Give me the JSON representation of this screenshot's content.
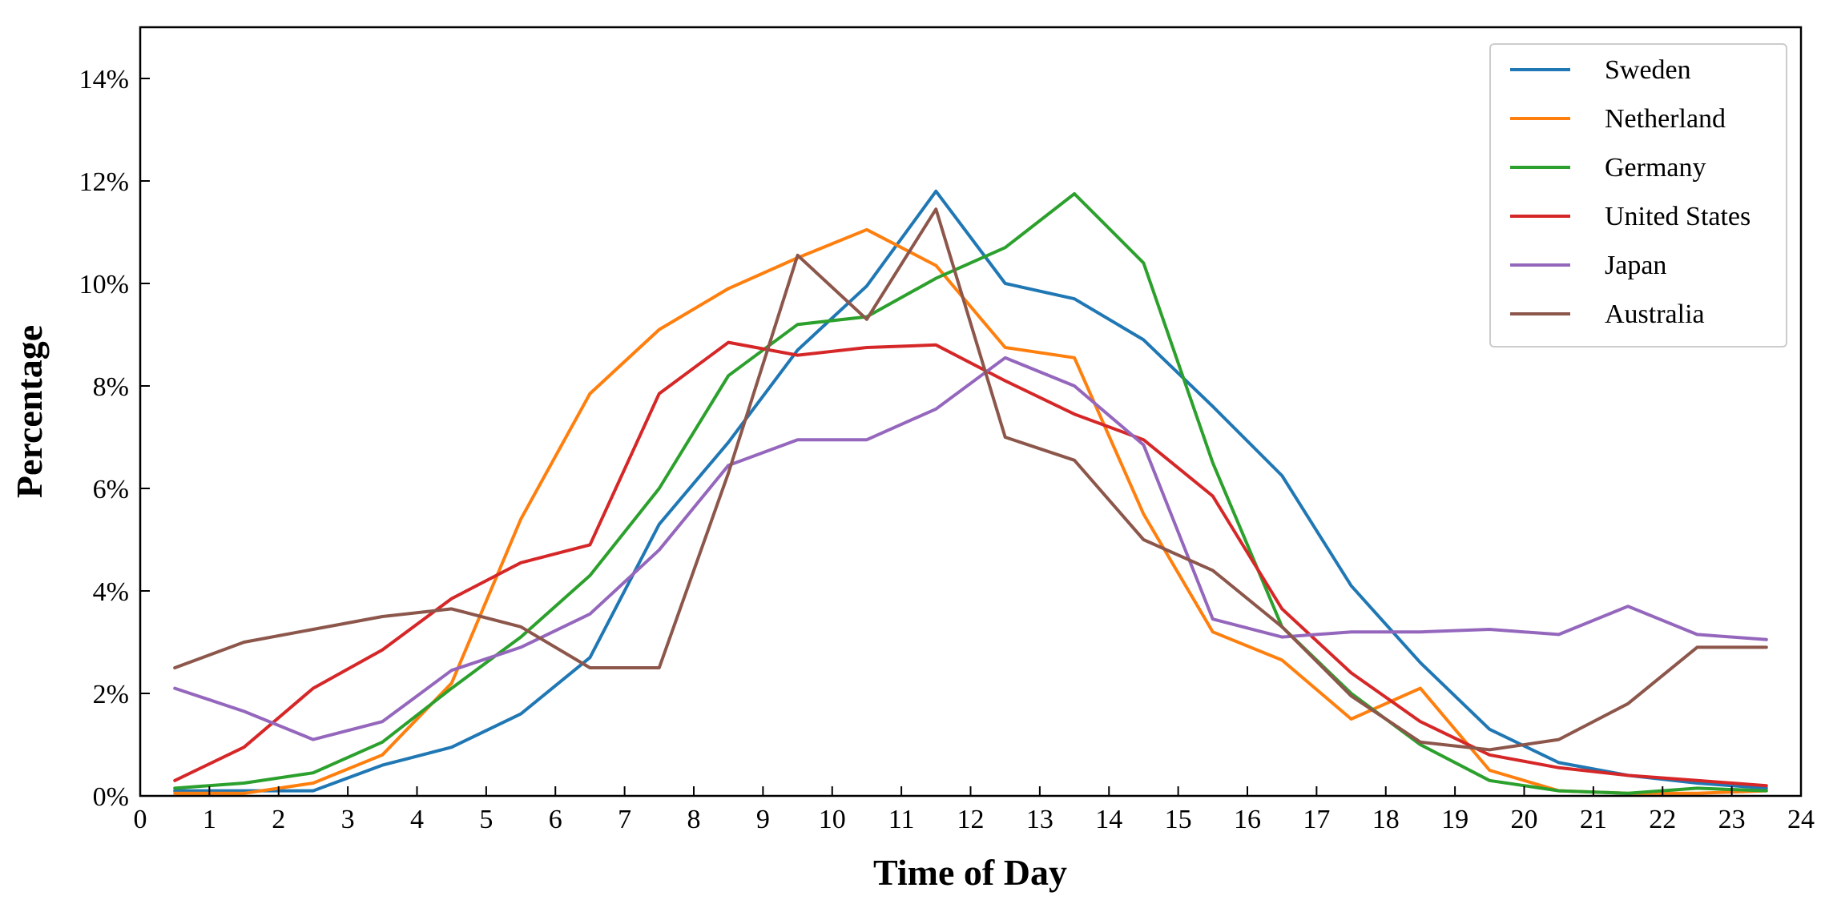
{
  "chart_data": {
    "type": "line",
    "title": "",
    "xlabel": "Time of Day",
    "ylabel": "Percentage",
    "xlim": [
      0,
      24
    ],
    "ylim": [
      0,
      15
    ],
    "xticks": [
      0,
      1,
      2,
      3,
      4,
      5,
      6,
      7,
      8,
      9,
      10,
      11,
      12,
      13,
      14,
      15,
      16,
      17,
      18,
      19,
      20,
      21,
      22,
      23,
      24
    ],
    "yticks": [
      0,
      2,
      4,
      6,
      8,
      10,
      12,
      14
    ],
    "ytick_labels": [
      "0%",
      "2%",
      "4%",
      "6%",
      "8%",
      "10%",
      "12%",
      "14%"
    ],
    "grid": false,
    "legend_position": "top-right",
    "x": [
      0.5,
      1.5,
      2.5,
      3.5,
      4.5,
      5.5,
      6.5,
      7.5,
      8.5,
      9.5,
      10.5,
      11.5,
      12.5,
      13.5,
      14.5,
      15.5,
      16.5,
      17.5,
      18.5,
      19.5,
      20.5,
      21.5,
      22.5,
      23.5
    ],
    "series": [
      {
        "name": "Sweden",
        "color": "#1f77b4",
        "values": [
          0.1,
          0.1,
          0.1,
          0.6,
          0.95,
          1.6,
          2.7,
          5.3,
          6.9,
          8.7,
          9.95,
          11.8,
          10.0,
          9.7,
          8.9,
          7.6,
          6.25,
          4.1,
          2.6,
          1.3,
          0.65,
          0.4,
          0.25,
          0.15
        ]
      },
      {
        "name": "Netherland",
        "color": "#ff7f0e",
        "values": [
          0.05,
          0.05,
          0.25,
          0.8,
          2.2,
          5.4,
          7.85,
          9.1,
          9.9,
          10.5,
          11.05,
          10.35,
          8.75,
          8.55,
          5.5,
          3.2,
          2.65,
          1.5,
          2.1,
          0.5,
          0.1,
          0.05,
          0.05,
          0.1
        ]
      },
      {
        "name": "Germany",
        "color": "#2ca02c",
        "values": [
          0.15,
          0.25,
          0.45,
          1.05,
          2.1,
          3.1,
          4.3,
          6.0,
          8.2,
          9.2,
          9.35,
          10.1,
          10.7,
          11.75,
          10.4,
          6.5,
          3.3,
          2.0,
          1.0,
          0.3,
          0.1,
          0.05,
          0.15,
          0.1
        ]
      },
      {
        "name": "United States",
        "color": "#d62728",
        "values": [
          0.3,
          0.95,
          2.1,
          2.85,
          3.85,
          4.55,
          4.9,
          7.85,
          8.85,
          8.6,
          8.75,
          8.8,
          8.1,
          7.45,
          6.95,
          5.85,
          3.65,
          2.4,
          1.45,
          0.8,
          0.55,
          0.4,
          0.3,
          0.2
        ]
      },
      {
        "name": "Japan",
        "color": "#9467bd",
        "values": [
          2.1,
          1.65,
          1.1,
          1.45,
          2.45,
          2.9,
          3.55,
          4.8,
          6.45,
          6.95,
          6.95,
          7.55,
          8.55,
          8.0,
          6.85,
          3.45,
          3.1,
          3.2,
          3.2,
          3.25,
          3.15,
          3.7,
          3.15,
          3.05
        ]
      },
      {
        "name": "Australia",
        "color": "#8c564b",
        "values": [
          2.5,
          3.0,
          3.25,
          3.5,
          3.65,
          3.3,
          2.5,
          2.5,
          6.3,
          10.55,
          9.3,
          11.45,
          7.0,
          6.55,
          5.0,
          4.4,
          3.3,
          1.95,
          1.05,
          0.9,
          1.1,
          1.8,
          2.9,
          2.9
        ]
      }
    ]
  }
}
